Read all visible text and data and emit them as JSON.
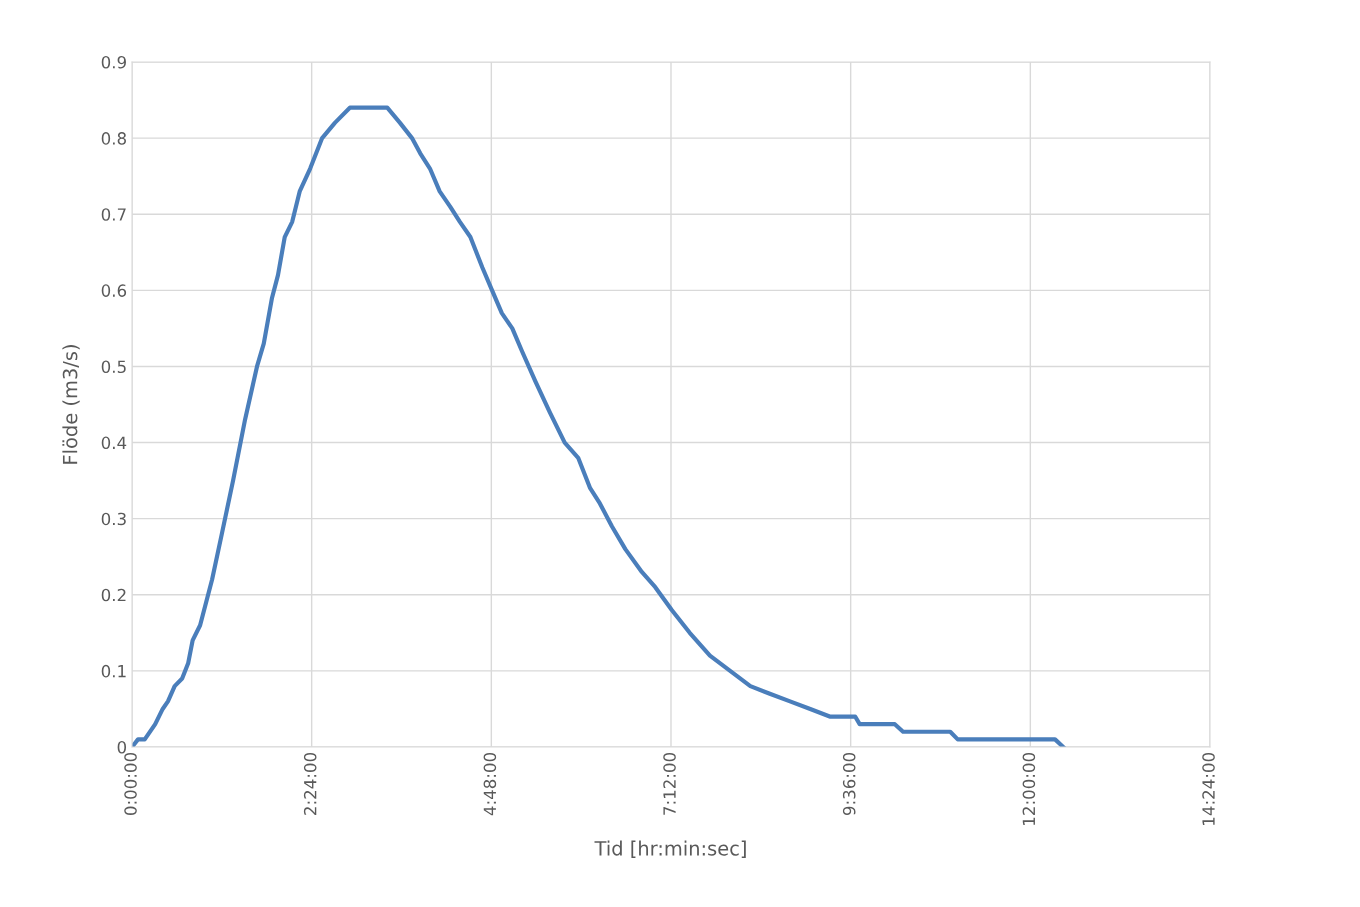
{
  "chart_data": {
    "type": "line",
    "xlabel": "Tid [hr:min:sec]",
    "ylabel": "Flöde (m3/s)",
    "series": [
      {
        "color": "#4a7ebb",
        "x": [
          0,
          0.08,
          0.17,
          0.31,
          0.41,
          0.48,
          0.57,
          0.67,
          0.75,
          0.81,
          0.91,
          1.07,
          1.2,
          1.35,
          1.51,
          1.67,
          1.76,
          1.87,
          1.95,
          2.04,
          2.14,
          2.24,
          2.38,
          2.54,
          2.71,
          2.91,
          3.41,
          3.58,
          3.74,
          3.85,
          3.98,
          4.11,
          4.25,
          4.38,
          4.52,
          4.68,
          4.81,
          4.94,
          5.08,
          5.21,
          5.39,
          5.58,
          5.78,
          5.96,
          6.12,
          6.25,
          6.41,
          6.59,
          6.81,
          6.99,
          7.21,
          7.45,
          7.72,
          7.99,
          8.26,
          8.52,
          8.79,
          9.06,
          9.32,
          9.66,
          9.72,
          10.19,
          10.3,
          10.93,
          11.03,
          12.33,
          12.44
        ],
        "values": [
          0,
          0.01,
          0.01,
          0.03,
          0.05,
          0.06,
          0.08,
          0.09,
          0.11,
          0.14,
          0.16,
          0.22,
          0.28,
          0.35,
          0.43,
          0.5,
          0.53,
          0.59,
          0.62,
          0.67,
          0.69,
          0.73,
          0.76,
          0.8,
          0.82,
          0.84,
          0.84,
          0.82,
          0.8,
          0.78,
          0.76,
          0.73,
          0.71,
          0.69,
          0.67,
          0.63,
          0.6,
          0.57,
          0.55,
          0.52,
          0.48,
          0.44,
          0.4,
          0.38,
          0.34,
          0.32,
          0.29,
          0.26,
          0.23,
          0.21,
          0.18,
          0.15,
          0.12,
          0.1,
          0.08,
          0.07,
          0.06,
          0.05,
          0.04,
          0.04,
          0.03,
          0.03,
          0.02,
          0.02,
          0.01,
          0.01,
          0
        ]
      }
    ],
    "xlim": [
      0,
      14.4
    ],
    "xticks": [
      {
        "value": 0,
        "label": "0:00:00"
      },
      {
        "value": 2.4,
        "label": "2:24:00"
      },
      {
        "value": 4.8,
        "label": "4:48:00"
      },
      {
        "value": 7.2,
        "label": "7:12:00"
      },
      {
        "value": 9.6,
        "label": "9:36:00"
      },
      {
        "value": 12,
        "label": "12:00:00"
      },
      {
        "value": 14.4,
        "label": "14:24:00"
      }
    ],
    "ylim": [
      0,
      0.9
    ],
    "yticks": [
      0,
      0.1,
      0.2,
      0.3,
      0.4,
      0.5,
      0.6,
      0.7,
      0.8,
      0.9
    ],
    "grid": true,
    "legend": false
  }
}
